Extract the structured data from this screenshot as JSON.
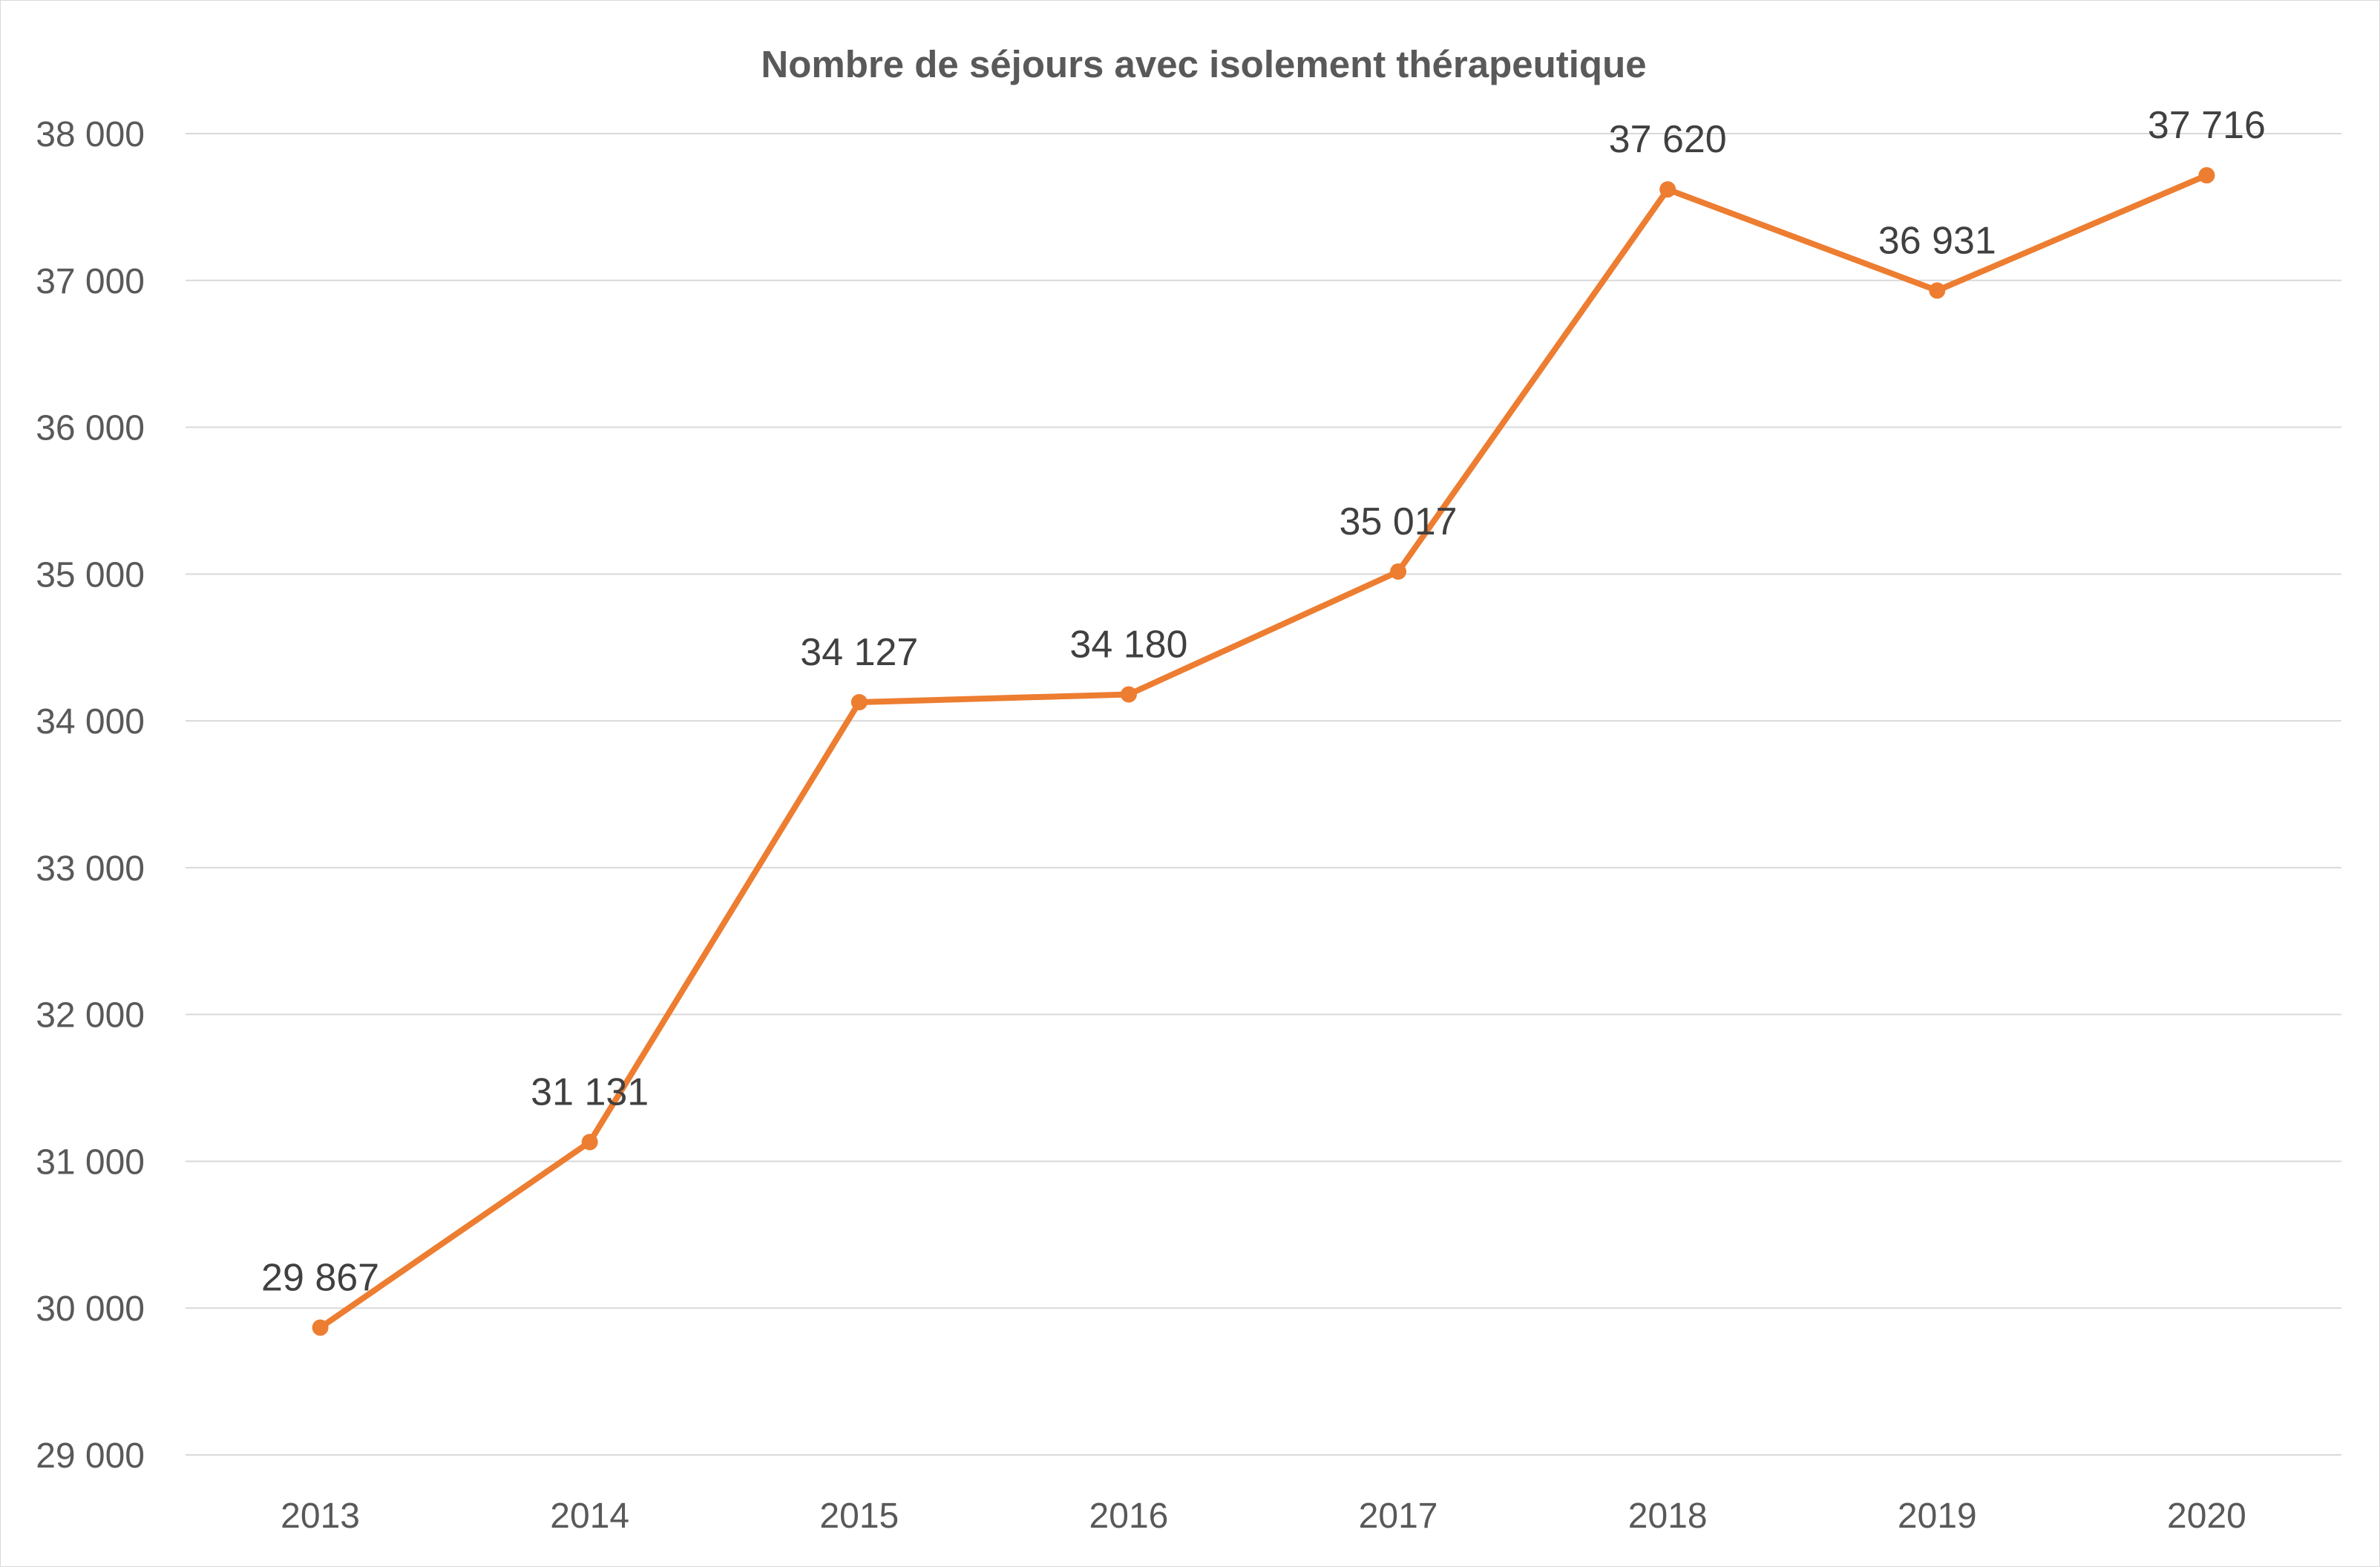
{
  "chart_data": {
    "type": "line",
    "title": "Nombre de séjours avec isolement thérapeutique",
    "xlabel": "",
    "ylabel": "",
    "categories": [
      "2013",
      "2014",
      "2015",
      "2016",
      "2017",
      "2018",
      "2019",
      "2020"
    ],
    "series": [
      {
        "values": [
          29867,
          31131,
          34127,
          34180,
          35017,
          37620,
          36931,
          37716
        ],
        "data_labels": [
          "29 867",
          "31 131",
          "34 127",
          "34 180",
          "35 017",
          "37 620",
          "36 931",
          "37 716"
        ],
        "color": "#ED7D31"
      }
    ],
    "ylim": [
      29000,
      38000
    ],
    "y_ticks": [
      29000,
      30000,
      31000,
      32000,
      33000,
      34000,
      35000,
      36000,
      37000,
      38000
    ],
    "y_tick_labels": [
      "29 000",
      "30 000",
      "31 000",
      "32 000",
      "33 000",
      "34 000",
      "35 000",
      "36 000",
      "37 000",
      "38 000"
    ],
    "grid": true,
    "legend": "none"
  }
}
